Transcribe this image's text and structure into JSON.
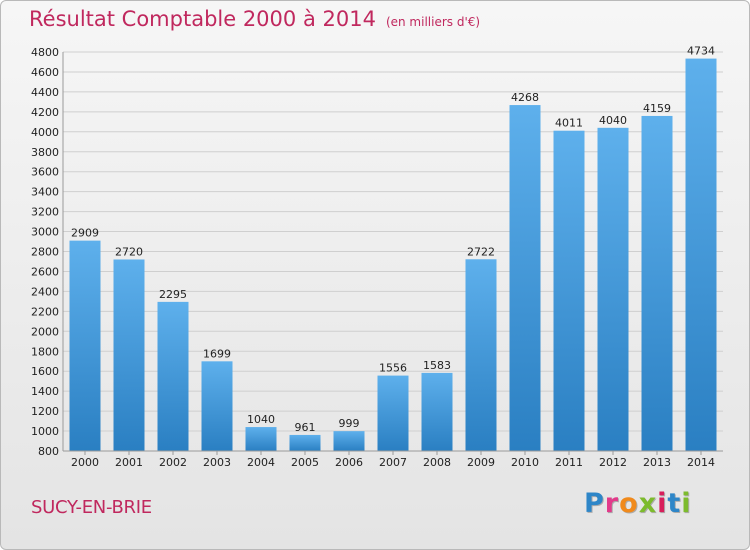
{
  "title": "Résultat Comptable 2000 à 2014",
  "subtitle": "(en milliers d'€)",
  "footer": {
    "place": "SUCY-EN-BRIE",
    "brand": "Proxiti"
  },
  "colors": {
    "title": "#c0285e",
    "bar_top": "#5eb0ec",
    "bar_bottom": "#2a7fc2"
  },
  "chart_data": {
    "type": "bar",
    "categories": [
      "2000",
      "2001",
      "2002",
      "2003",
      "2004",
      "2005",
      "2006",
      "2007",
      "2008",
      "2009",
      "2010",
      "2011",
      "2012",
      "2013",
      "2014"
    ],
    "values": [
      2909,
      2720,
      2295,
      1699,
      1040,
      961,
      999,
      1556,
      1583,
      2722,
      4268,
      4011,
      4040,
      4159,
      4734
    ],
    "ylim": [
      800,
      4800
    ],
    "ytick_step": 200,
    "grid": true
  }
}
